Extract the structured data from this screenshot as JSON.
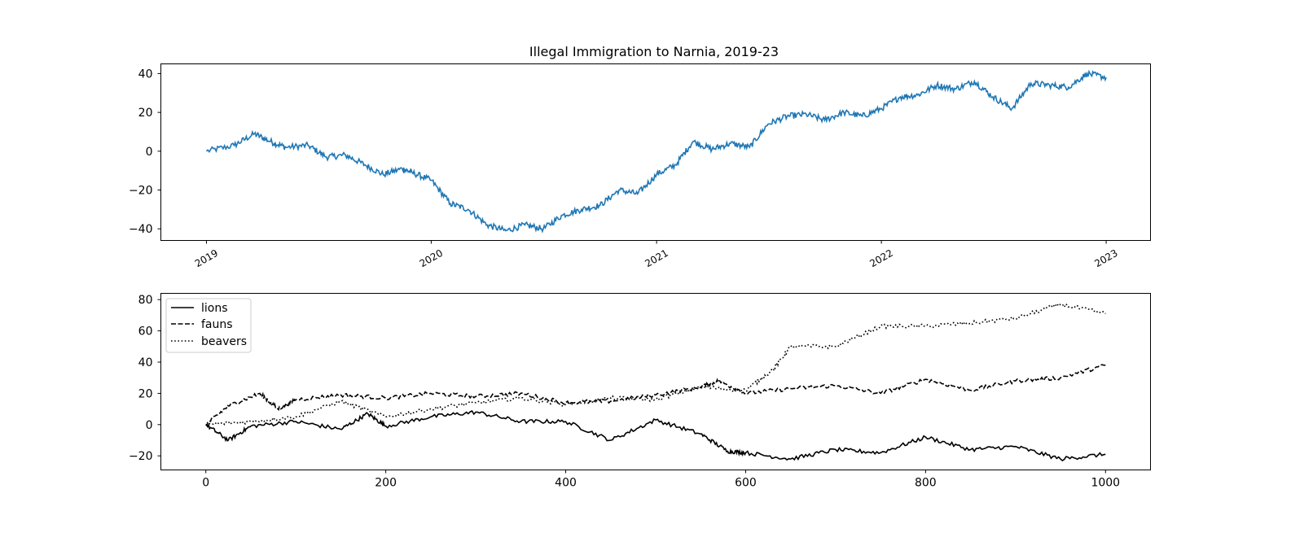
{
  "chart_data": [
    {
      "type": "line",
      "title": "Illegal Immigration to Narnia, 2019-23",
      "xlabel": "",
      "ylabel": "",
      "x_ticks": [
        "2019",
        "2020",
        "2021",
        "2022",
        "2023"
      ],
      "y_ticks": [
        40,
        20,
        0,
        -20,
        -40
      ],
      "xlim": [
        "2018-10-19",
        "2023-03-14"
      ],
      "ylim": [
        -46,
        45
      ],
      "grid": false,
      "series": [
        {
          "color": "#1f77b4",
          "x": [
            "2019-01-01",
            "2019-02-15",
            "2019-03-20",
            "2019-04-15",
            "2019-05-10",
            "2019-06-15",
            "2019-07-15",
            "2019-08-15",
            "2019-09-15",
            "2019-10-15",
            "2019-11-15",
            "2019-12-01",
            "2020-01-01",
            "2020-02-01",
            "2020-03-01",
            "2020-04-01",
            "2020-05-01",
            "2020-06-01",
            "2020-07-01",
            "2020-08-01",
            "2020-09-01",
            "2020-10-01",
            "2020-11-01",
            "2020-12-01",
            "2021-01-01",
            "2021-02-01",
            "2021-03-01",
            "2021-04-01",
            "2021-05-01",
            "2021-06-01",
            "2021-07-01",
            "2021-08-01",
            "2021-09-01",
            "2021-10-01",
            "2021-11-01",
            "2021-12-01",
            "2022-01-01",
            "2022-02-01",
            "2022-03-01",
            "2022-04-01",
            "2022-05-01",
            "2022-06-01",
            "2022-07-01",
            "2022-08-01",
            "2022-09-01",
            "2022-10-01",
            "2022-11-01",
            "2022-12-01",
            "2023-01-01"
          ],
          "y": [
            0,
            3,
            9,
            5,
            2,
            3,
            -3,
            -2,
            -7,
            -12,
            -9,
            -11,
            -15,
            -27,
            -30,
            -38,
            -41,
            -38,
            -40,
            -33,
            -30,
            -28,
            -20,
            -22,
            -12,
            -7,
            5,
            1,
            4,
            2,
            14,
            18,
            19,
            16,
            20,
            18,
            22,
            28,
            29,
            34,
            32,
            36,
            28,
            22,
            35,
            34,
            33,
            40,
            38
          ]
        }
      ]
    },
    {
      "type": "line",
      "title": "",
      "xlabel": "",
      "ylabel": "",
      "x_ticks": [
        0,
        200,
        400,
        600,
        800,
        1000
      ],
      "y_ticks": [
        80,
        60,
        40,
        20,
        0,
        -20
      ],
      "xlim": [
        -50,
        1050
      ],
      "ylim": [
        -29,
        84
      ],
      "grid": false,
      "legend_position": "top-left",
      "series": [
        {
          "name": "lions",
          "style": "solid",
          "x": [
            0,
            25,
            50,
            100,
            150,
            180,
            200,
            250,
            300,
            350,
            400,
            450,
            500,
            550,
            580,
            600,
            650,
            700,
            750,
            800,
            850,
            900,
            950,
            1000
          ],
          "y": [
            0,
            -10,
            -1,
            2,
            -3,
            7,
            -1,
            5,
            8,
            2,
            2,
            -10,
            3,
            -6,
            -17,
            -18,
            -22,
            -16,
            -18,
            -8,
            -16,
            -14,
            -22,
            -19
          ]
        },
        {
          "name": "fauns",
          "style": "dashed",
          "x": [
            0,
            25,
            60,
            80,
            100,
            150,
            200,
            250,
            300,
            350,
            400,
            450,
            500,
            550,
            570,
            600,
            650,
            700,
            750,
            800,
            850,
            900,
            950,
            1000
          ],
          "y": [
            0,
            12,
            20,
            10,
            16,
            19,
            17,
            20,
            18,
            20,
            14,
            15,
            19,
            24,
            28,
            20,
            23,
            25,
            20,
            29,
            22,
            28,
            30,
            38
          ]
        },
        {
          "name": "beavers",
          "style": "dotted",
          "x": [
            0,
            50,
            100,
            150,
            200,
            250,
            300,
            350,
            400,
            450,
            500,
            550,
            600,
            630,
            650,
            700,
            750,
            800,
            850,
            900,
            950,
            1000
          ],
          "y": [
            0,
            2,
            5,
            15,
            5,
            10,
            14,
            17,
            13,
            17,
            16,
            24,
            22,
            35,
            50,
            50,
            63,
            63,
            65,
            68,
            77,
            71
          ]
        }
      ]
    }
  ]
}
